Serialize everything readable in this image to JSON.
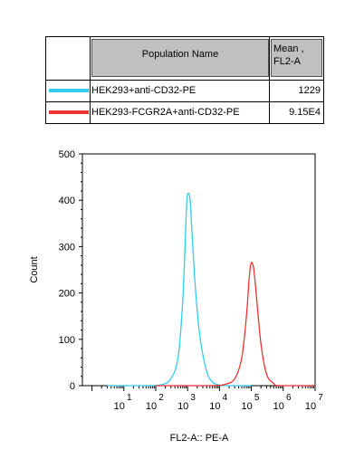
{
  "legend": {
    "header_name": "Population Name",
    "header_mean_line1": "Mean ,",
    "header_mean_line2": "FL2-A",
    "rows": [
      {
        "name": "HEK293+anti-CD32-PE",
        "mean": "1229",
        "color": "#33ccee"
      },
      {
        "name": "HEK293-FCGR2A+anti-CD32-PE",
        "mean": "9.15E4",
        "color": "#ee3333"
      }
    ]
  },
  "chart_data": {
    "type": "line",
    "title": "",
    "xlabel": "FL2-A:: PE-A",
    "ylabel": "Count",
    "xscale": "log",
    "xlim": [
      0.5,
      10000000.0
    ],
    "ylim": [
      0,
      500
    ],
    "yticks": [
      0,
      100,
      200,
      300,
      400,
      500
    ],
    "xtick_labels": [
      {
        "base": "10",
        "exp": "1",
        "value": 10
      },
      {
        "base": "10",
        "exp": "2",
        "value": 100
      },
      {
        "base": "10",
        "exp": "3",
        "value": 1000
      },
      {
        "base": "10",
        "exp": "4",
        "value": 10000
      },
      {
        "base": "10",
        "exp": "5",
        "value": 100000
      },
      {
        "base": "10",
        "exp": "6",
        "value": 1000000
      },
      {
        "base": "10",
        "exp": "7",
        "value": 10000000
      }
    ],
    "series": [
      {
        "name": "HEK293+anti-CD32-PE",
        "color": "#33ccee",
        "x": [
          3,
          50,
          150,
          300,
          500,
          700,
          850,
          950,
          1050,
          1200,
          1400,
          1800,
          2500,
          4000,
          6000,
          9000,
          12000,
          20000,
          100000
        ],
        "y": [
          0,
          0,
          2,
          15,
          60,
          180,
          320,
          400,
          415,
          400,
          320,
          200,
          100,
          30,
          8,
          2,
          0,
          0,
          0
        ]
      },
      {
        "name": "HEK293-FCGR2A+anti-CD32-PE",
        "color": "#ee3333",
        "x": [
          100,
          5000,
          15000,
          30000,
          50000,
          70000,
          85000,
          95000,
          105000,
          120000,
          150000,
          200000,
          300000,
          500000,
          800000,
          10000000
        ],
        "y": [
          0,
          0,
          3,
          15,
          60,
          150,
          230,
          260,
          265,
          250,
          180,
          90,
          25,
          5,
          0,
          0
        ]
      }
    ]
  }
}
